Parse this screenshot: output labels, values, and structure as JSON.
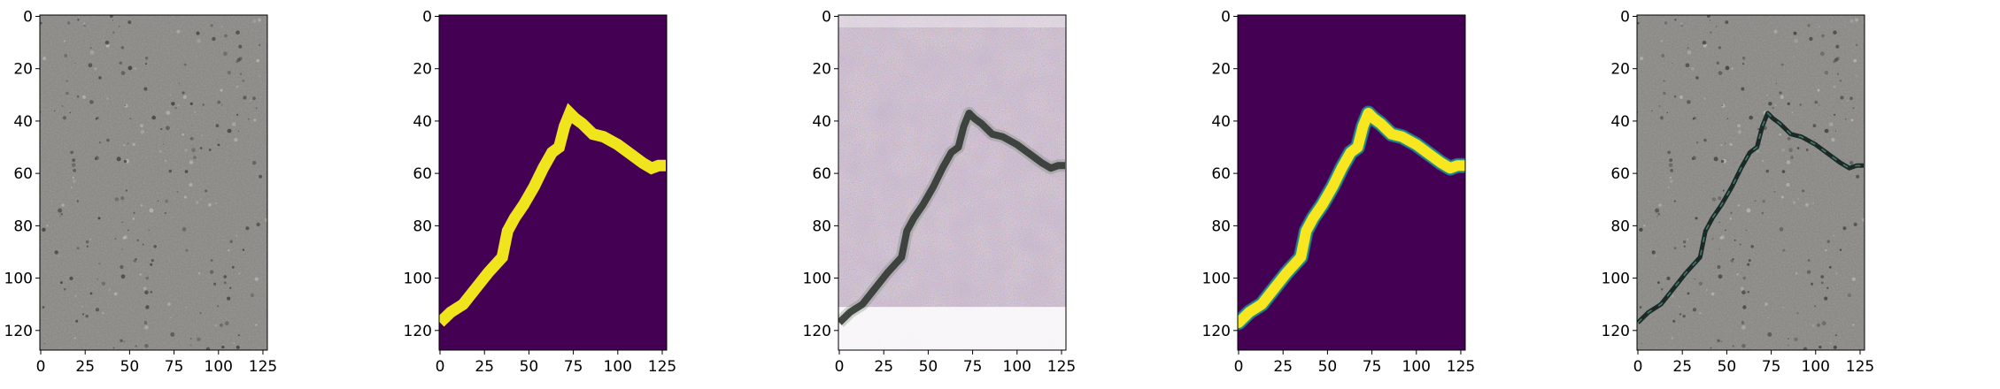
{
  "figure": {
    "panels": [
      {
        "name": "concrete-input-image",
        "image": "concrete-texture",
        "xticks": [
          "0",
          "25",
          "50",
          "75",
          "100",
          "125"
        ],
        "yticks": [
          "0",
          "20",
          "40",
          "60",
          "80",
          "100",
          "120"
        ],
        "xlim": [
          -0.5,
          127.5
        ],
        "ylim": [
          127.5,
          -0.5
        ]
      },
      {
        "name": "ground-truth-mask",
        "image": "binary-crack-mask",
        "colors": {
          "background": "#440154",
          "crack": "#f0e41c"
        },
        "xticks": [
          "0",
          "25",
          "50",
          "75",
          "100",
          "125"
        ],
        "yticks": [
          "0",
          "20",
          "40",
          "60",
          "80",
          "100",
          "120"
        ]
      },
      {
        "name": "generated-noisy-image",
        "image": "noisy-generated-crack",
        "xticks": [
          "0",
          "25",
          "50",
          "75",
          "100",
          "125"
        ],
        "yticks": [
          "0",
          "20",
          "40",
          "60",
          "80",
          "100",
          "120"
        ]
      },
      {
        "name": "predicted-mask",
        "image": "soft-crack-mask",
        "colors": {
          "background": "#440154",
          "crack": "#f8e621",
          "edge": "#21918c"
        },
        "xticks": [
          "0",
          "25",
          "50",
          "75",
          "100",
          "125"
        ],
        "yticks": [
          "0",
          "20",
          "40",
          "60",
          "80",
          "100",
          "120"
        ]
      },
      {
        "name": "concrete-with-crack",
        "image": "concrete-texture-with-crack",
        "xticks": [
          "0",
          "25",
          "50",
          "75",
          "100",
          "125"
        ],
        "yticks": [
          "0",
          "20",
          "40",
          "60",
          "80",
          "100",
          "120"
        ]
      }
    ],
    "crack_path": [
      [
        0,
        117
      ],
      [
        6,
        113
      ],
      [
        13,
        110
      ],
      [
        20,
        104
      ],
      [
        27,
        98
      ],
      [
        35,
        92
      ],
      [
        38,
        82
      ],
      [
        42,
        77
      ],
      [
        47,
        72
      ],
      [
        53,
        65
      ],
      [
        58,
        58
      ],
      [
        63,
        52
      ],
      [
        67,
        50
      ],
      [
        70,
        42
      ],
      [
        73,
        37
      ],
      [
        76,
        39
      ],
      [
        80,
        41
      ],
      [
        86,
        45
      ],
      [
        92,
        46
      ],
      [
        100,
        49
      ],
      [
        108,
        53
      ],
      [
        114,
        56
      ],
      [
        119,
        58
      ],
      [
        123,
        57
      ],
      [
        127,
        57
      ]
    ],
    "colors": {
      "concrete": "#8b8a86",
      "viridis_dark": "#440154",
      "viridis_yellow": "#f0e41c"
    }
  }
}
